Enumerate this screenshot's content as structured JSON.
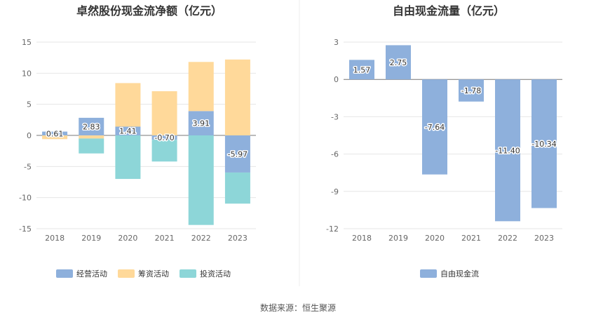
{
  "chart_data": [
    {
      "type": "bar",
      "stacked": true,
      "title": "卓然股份现金流净额（亿元）",
      "categories": [
        "2018",
        "2019",
        "2020",
        "2021",
        "2022",
        "2023"
      ],
      "ylim": [
        -15,
        15
      ],
      "yticks": [
        15,
        10,
        5,
        0,
        -5,
        -10,
        -15
      ],
      "series": [
        {
          "name": "经营活动",
          "color": "#8eb0dc",
          "values": [
            0.61,
            2.83,
            1.41,
            -0.7,
            3.91,
            -5.97
          ]
        },
        {
          "name": "筹资活动",
          "color": "#ffd99a",
          "values": [
            -0.6,
            -0.5,
            7.0,
            7.1,
            7.9,
            12.2
          ]
        },
        {
          "name": "投资活动",
          "color": "#8dd6d8",
          "values": [
            0.0,
            -2.4,
            -7.0,
            -3.5,
            -14.4,
            -5.0
          ]
        }
      ],
      "data_labels": [
        "0.61",
        "2.83",
        "1.41",
        "-0.70",
        "3.91",
        "-5.97"
      ],
      "legend_position": "bottom"
    },
    {
      "type": "bar",
      "title": "自由现金流量（亿元）",
      "categories": [
        "2018",
        "2019",
        "2020",
        "2021",
        "2022",
        "2023"
      ],
      "ylim": [
        -12,
        3
      ],
      "yticks": [
        3,
        0,
        -3,
        -6,
        -9,
        -12
      ],
      "series": [
        {
          "name": "自由现金流",
          "color": "#8eb0dc",
          "values": [
            1.57,
            2.75,
            -7.64,
            -1.78,
            -11.4,
            -10.34
          ]
        }
      ],
      "data_labels": [
        "1.57",
        "2.75",
        "-7.64",
        "-1.78",
        "-11.40",
        "-10.34"
      ],
      "legend_position": "bottom"
    }
  ],
  "source_text": "数据来源：恒生聚源"
}
